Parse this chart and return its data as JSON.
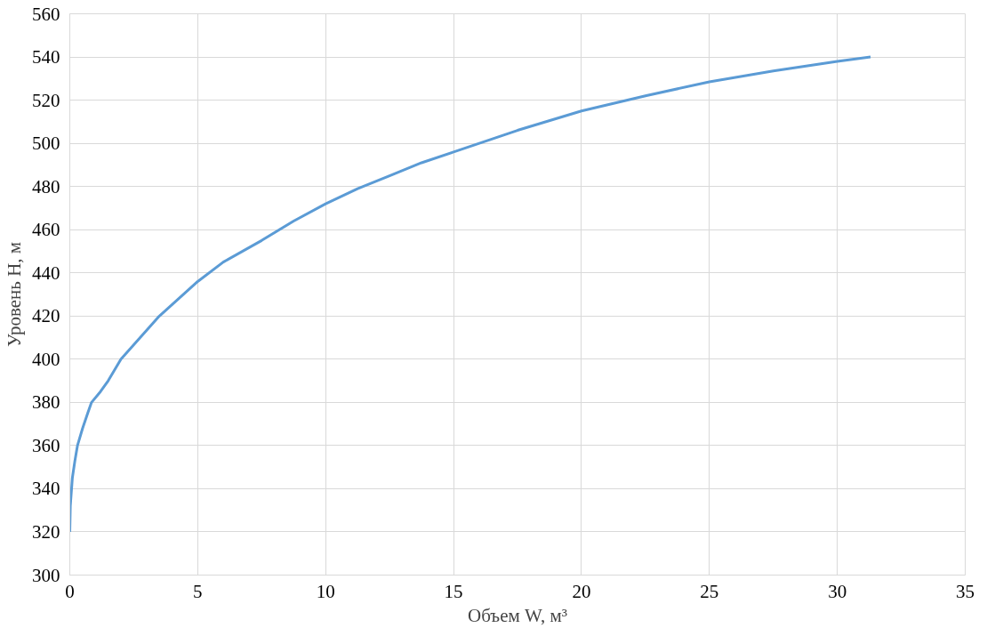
{
  "chart_data": {
    "type": "line",
    "xlabel": "Объем W, м³",
    "ylabel": "Уровень H, м",
    "xlim": [
      0,
      35
    ],
    "xticks": [
      0,
      5,
      10,
      15,
      20,
      25,
      30,
      35
    ],
    "ylim": [
      300,
      560
    ],
    "yticks": [
      300,
      320,
      340,
      360,
      380,
      400,
      420,
      440,
      460,
      480,
      500,
      520,
      540,
      560
    ],
    "grid": true,
    "series": [
      {
        "color": "#5b9bd5",
        "x": [
          0,
          0.02,
          0.1,
          0.2,
          0.3,
          0.5,
          0.7,
          0.85,
          1.2,
          1.5,
          2,
          2.75,
          3.5,
          4.25,
          5,
          6,
          7.5,
          8.75,
          10,
          11.25,
          12.5,
          13.75,
          15,
          17.5,
          20,
          22.5,
          25,
          27.5,
          30,
          31.3
        ],
        "values": [
          320,
          332,
          345,
          353,
          360,
          368,
          375,
          380,
          385,
          390,
          400,
          410,
          420,
          428,
          436,
          445,
          455,
          464,
          472,
          479,
          485,
          491,
          496,
          506,
          515,
          522,
          528.5,
          533.5,
          538,
          540
        ]
      }
    ]
  }
}
